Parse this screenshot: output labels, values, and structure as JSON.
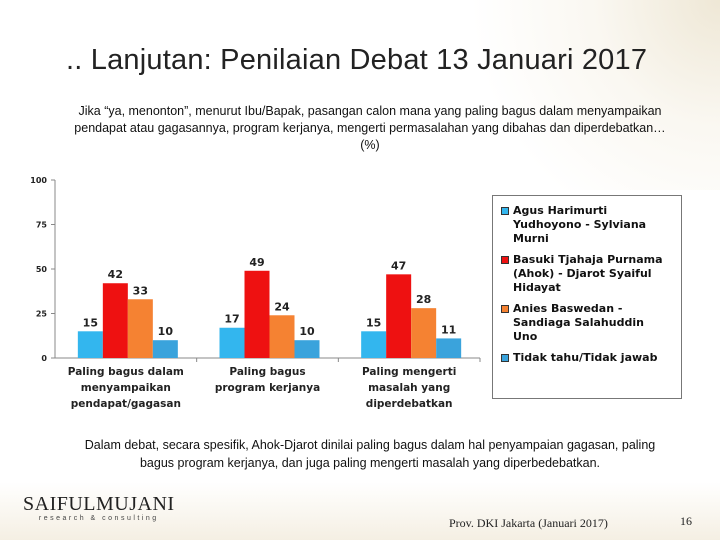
{
  "slide": {
    "title": ".. Lanjutan: Penilaian Debat 13 Januari 2017",
    "question": "Jika “ya, menonton”, menurut Ibu/Bapak, pasangan calon mana yang paling bagus dalam menyampaikan pendapat atau gagasannya, program kerjanya, mengerti permasalahan yang dibahas dan diperdebatkan…(%)",
    "summary": "Dalam debat, secara spesifik, Ahok-Djarot dinilai paling bagus dalam hal penyampaian gagasan, paling bagus program kerjanya, dan juga paling mengerti masalah yang diperbedebatkan.",
    "logo_main": "SAIFULMUJANI",
    "logo_sub": "research & consulting",
    "footer": "Prov. DKI Jakarta (Januari 2017)",
    "page_number": "16"
  },
  "chart_data": {
    "type": "bar",
    "categories": [
      [
        "Paling bagus dalam",
        "menyampaikan",
        "pendapat/gagasan"
      ],
      [
        "Paling bagus",
        "program kerjanya"
      ],
      [
        "Paling mengerti",
        "masalah yang",
        "diperdebatkan"
      ]
    ],
    "series": [
      {
        "name": "Agus Harimurti Yudhoyono - Sylviana Murni",
        "legend_lines": [
          "Agus Harimurti",
          "Yudhoyono - Sylviana",
          "Murni"
        ],
        "color": "#33b6ee",
        "values": [
          15,
          17,
          15
        ]
      },
      {
        "name": "Basuki Tjahaja Purnama (Ahok) - Djarot Syaiful Hidayat",
        "legend_lines": [
          "Basuki Tjahaja Purnama",
          "(Ahok) - Djarot Syaiful",
          "Hidayat"
        ],
        "color": "#ee1111",
        "values": [
          42,
          49,
          47
        ]
      },
      {
        "name": "Anies Baswedan - Sandiaga Salahuddin Uno",
        "legend_lines": [
          "Anies Baswedan -",
          "Sandiaga Salahuddin",
          "Uno"
        ],
        "color": "#f58232",
        "values": [
          33,
          24,
          28
        ]
      },
      {
        "name": "Tidak tahu/Tidak jawab",
        "legend_lines": [
          "Tidak tahu/Tidak jawab"
        ],
        "color": "#3aa3dc",
        "values": [
          10,
          10,
          11
        ]
      }
    ],
    "yticks": [
      0,
      25,
      50,
      75,
      100
    ],
    "ylim": [
      0,
      100
    ],
    "grid": false,
    "legend_position": "right"
  }
}
